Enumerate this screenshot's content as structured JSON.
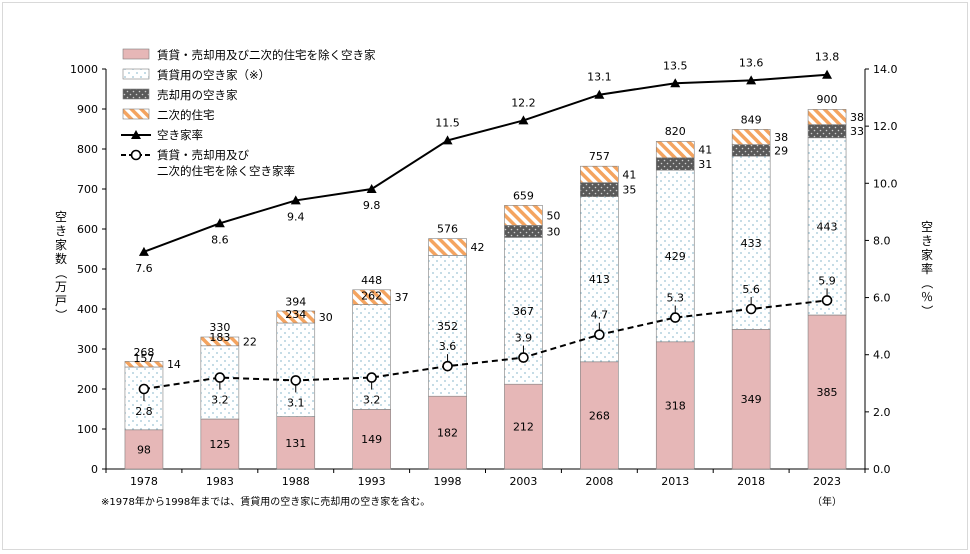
{
  "chart_data": {
    "type": "bar",
    "categories": [
      "1978",
      "1983",
      "1988",
      "1993",
      "1998",
      "2003",
      "2008",
      "2013",
      "2018",
      "2023"
    ],
    "x_unit": "（年）",
    "series": [
      {
        "name": "賃貸・売却用及び二次的住宅を除く空き家",
        "values": [
          98,
          125,
          131,
          149,
          182,
          212,
          268,
          318,
          349,
          385
        ],
        "color": "#e6b7b7"
      },
      {
        "name": "賃貸用の空き家（※）",
        "values": [
          157,
          183,
          234,
          262,
          352,
          367,
          413,
          429,
          433,
          443
        ],
        "color": "#ffffff"
      },
      {
        "name": "売却用の空き家",
        "values": [
          null,
          null,
          null,
          null,
          null,
          30,
          35,
          31,
          29,
          33
        ],
        "color": "#595959"
      },
      {
        "name": "二次的住宅",
        "values": [
          14,
          22,
          30,
          37,
          42,
          50,
          41,
          41,
          38,
          38
        ],
        "color": "#f4a460"
      }
    ],
    "totals": [
      268,
      330,
      394,
      448,
      576,
      659,
      757,
      820,
      849,
      900
    ],
    "line_series": [
      {
        "name": "空き家率",
        "values": [
          7.6,
          8.6,
          9.4,
          9.8,
          11.5,
          12.2,
          13.1,
          13.5,
          13.6,
          13.8
        ],
        "labels": [
          "7.6",
          "8.6",
          "9.4",
          "9.8",
          "11.5",
          "12.2",
          "13.1",
          "13.5",
          "13.6",
          "13.8"
        ]
      },
      {
        "name": "賃貸・売却用及び\n二次的住宅を除く空き家率",
        "values": [
          2.8,
          3.2,
          3.1,
          3.2,
          3.6,
          3.9,
          4.7,
          5.3,
          5.6,
          5.9
        ],
        "labels": [
          "2.8",
          "3.2",
          "3.1",
          "3.2",
          "3.6",
          "3.9",
          "4.7",
          "5.3",
          "5.6",
          "5.9"
        ]
      }
    ],
    "ylabel": "空き家数（万戸）",
    "ylim": [
      0,
      1000
    ],
    "yticks": [
      0,
      100,
      200,
      300,
      400,
      500,
      600,
      700,
      800,
      900,
      1000
    ],
    "y2label": "空き家率（％）",
    "y2lim": [
      0,
      14
    ],
    "y2ticks": [
      "0.0",
      "2.0",
      "4.0",
      "6.0",
      "8.0",
      "10.0",
      "12.0",
      "14.0"
    ],
    "legend": [
      "賃貸・売却用及び二次的住宅を除く空き家",
      "賃貸用の空き家（※）",
      "売却用の空き家",
      "二次的住宅",
      "空き家率",
      "賃貸・売却用及び\n二次的住宅を除く空き家率"
    ],
    "legend_position": "top-left",
    "grid": false
  },
  "footnote": "※1978年から1998年までは、賃貸用の空き家に売却用の空き家を含む。",
  "colors": {
    "pink": "#e6b7b7",
    "dark": "#595959",
    "orange": "#f4a460",
    "dot": "#9cc3d5",
    "line": "#000000"
  }
}
